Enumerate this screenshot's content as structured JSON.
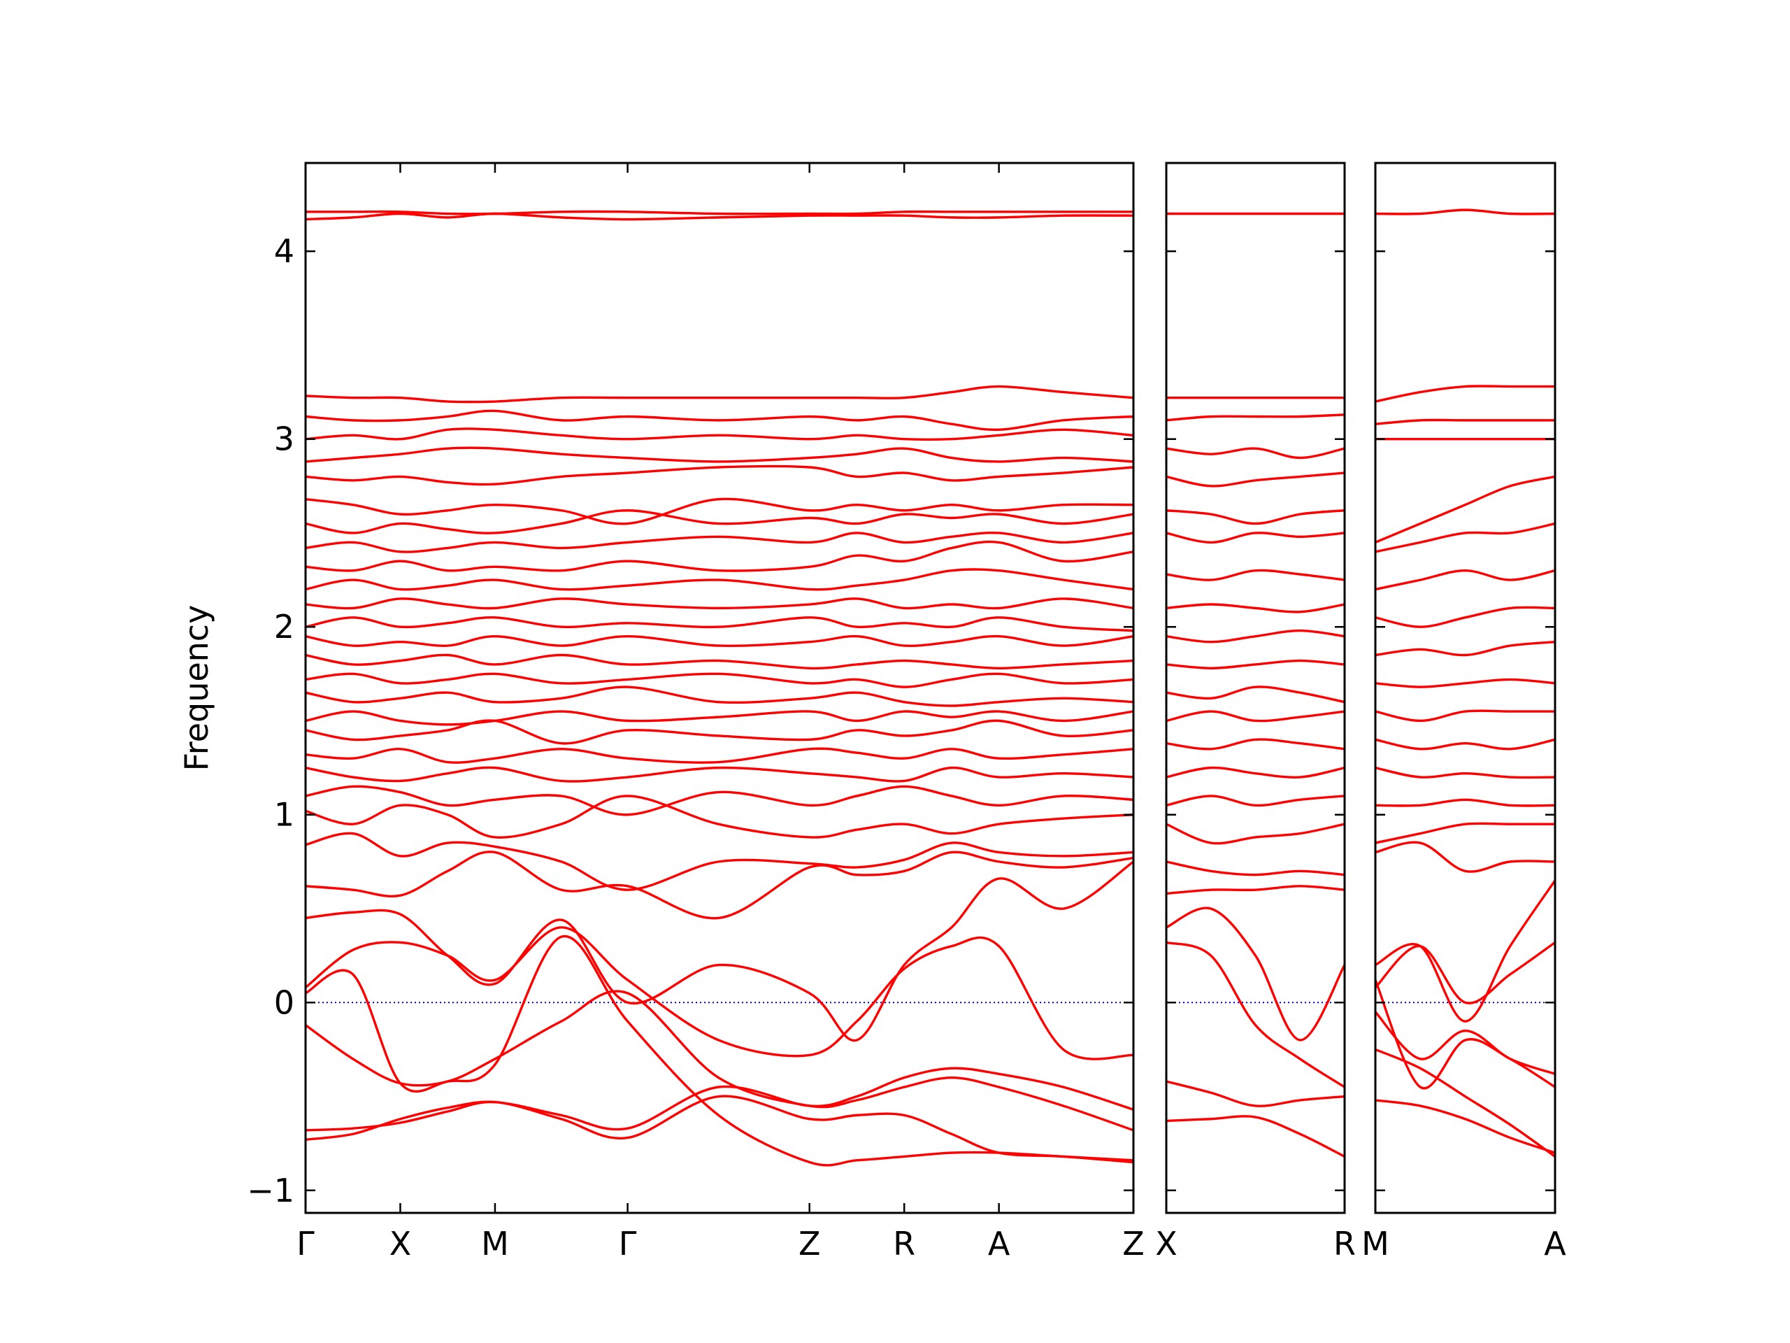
{
  "chart_data": [
    {
      "type": "line",
      "ylabel": "Frequency",
      "color": "#ff0000",
      "hline": 0,
      "hline_color": "#0000cc",
      "xlim": [
        0,
        4.37
      ],
      "ylim": [
        -1.12,
        4.47
      ],
      "ytick_labels": true,
      "xticks": [
        {
          "value": 0,
          "label": "Γ"
        },
        {
          "value": 0.5,
          "label": "X"
        },
        {
          "value": 1.0,
          "label": "M"
        },
        {
          "value": 1.7,
          "label": "Γ"
        },
        {
          "value": 2.66,
          "label": "Z"
        },
        {
          "value": 3.16,
          "label": "R"
        },
        {
          "value": 3.66,
          "label": "A"
        },
        {
          "value": 4.37,
          "label": "Z"
        }
      ],
      "yticks": [
        {
          "value": -1,
          "label": "−1"
        },
        0,
        1,
        2,
        3,
        4
      ],
      "x": [
        0,
        0.25,
        0.5,
        0.75,
        1.0,
        1.35,
        1.7,
        2.18,
        2.66,
        2.91,
        3.16,
        3.41,
        3.66,
        4.0,
        4.37
      ],
      "series": [
        {
          "values": [
            -0.73,
            -0.7,
            -0.62,
            -0.56,
            -0.53,
            -0.6,
            -0.67,
            -0.45,
            -0.55,
            -0.5,
            -0.4,
            -0.35,
            -0.38,
            -0.45,
            -0.57
          ]
        },
        {
          "values": [
            -0.68,
            -0.67,
            -0.64,
            -0.58,
            -0.53,
            -0.62,
            -0.72,
            -0.5,
            -0.62,
            -0.6,
            -0.6,
            -0.7,
            -0.8,
            -0.82,
            -0.85
          ]
        },
        {
          "values": [
            -0.12,
            -0.3,
            -0.43,
            -0.42,
            -0.3,
            -0.1,
            0.05,
            -0.4,
            -0.55,
            -0.52,
            -0.45,
            -0.4,
            -0.45,
            -0.55,
            -0.68
          ]
        },
        {
          "values": [
            0.05,
            0.15,
            -0.43,
            -0.42,
            -0.33,
            0.35,
            -0.1,
            -0.6,
            -0.85,
            -0.84,
            -0.82,
            -0.8,
            -0.8,
            -0.82,
            -0.84
          ]
        },
        {
          "values": [
            0.08,
            0.28,
            0.32,
            0.25,
            0.12,
            0.4,
            0.12,
            -0.2,
            -0.28,
            -0.1,
            0.18,
            0.3,
            0.3,
            -0.25,
            -0.28
          ]
        },
        {
          "values": [
            0.45,
            0.48,
            0.47,
            0.25,
            0.1,
            0.44,
            0.0,
            0.2,
            0.05,
            -0.2,
            0.2,
            0.4,
            0.66,
            0.5,
            0.75
          ]
        },
        {
          "values": [
            0.62,
            0.6,
            0.57,
            0.7,
            0.8,
            0.6,
            0.62,
            0.45,
            0.72,
            0.68,
            0.7,
            0.8,
            0.75,
            0.72,
            0.77
          ]
        },
        {
          "values": [
            0.84,
            0.9,
            0.78,
            0.85,
            0.83,
            0.75,
            0.6,
            0.75,
            0.74,
            0.72,
            0.76,
            0.85,
            0.8,
            0.78,
            0.8
          ]
        },
        {
          "values": [
            1.02,
            0.95,
            1.05,
            1.0,
            0.88,
            0.95,
            1.1,
            0.95,
            0.88,
            0.92,
            0.95,
            0.9,
            0.95,
            0.98,
            1.0
          ]
        },
        {
          "values": [
            1.1,
            1.15,
            1.12,
            1.05,
            1.08,
            1.1,
            1.0,
            1.12,
            1.05,
            1.1,
            1.15,
            1.1,
            1.05,
            1.1,
            1.08
          ]
        },
        {
          "values": [
            1.25,
            1.2,
            1.18,
            1.22,
            1.25,
            1.18,
            1.2,
            1.25,
            1.22,
            1.2,
            1.18,
            1.25,
            1.2,
            1.22,
            1.2
          ]
        },
        {
          "values": [
            1.32,
            1.3,
            1.35,
            1.28,
            1.3,
            1.35,
            1.3,
            1.28,
            1.35,
            1.33,
            1.3,
            1.35,
            1.3,
            1.32,
            1.35
          ]
        },
        {
          "values": [
            1.45,
            1.4,
            1.42,
            1.45,
            1.5,
            1.38,
            1.45,
            1.42,
            1.4,
            1.45,
            1.42,
            1.45,
            1.5,
            1.42,
            1.45
          ]
        },
        {
          "values": [
            1.5,
            1.55,
            1.5,
            1.48,
            1.5,
            1.55,
            1.5,
            1.52,
            1.55,
            1.5,
            1.55,
            1.52,
            1.55,
            1.5,
            1.55
          ]
        },
        {
          "values": [
            1.65,
            1.6,
            1.62,
            1.65,
            1.6,
            1.62,
            1.68,
            1.6,
            1.62,
            1.65,
            1.6,
            1.58,
            1.6,
            1.62,
            1.6
          ]
        },
        {
          "values": [
            1.72,
            1.75,
            1.7,
            1.72,
            1.75,
            1.7,
            1.72,
            1.75,
            1.7,
            1.72,
            1.68,
            1.72,
            1.75,
            1.7,
            1.72
          ]
        },
        {
          "values": [
            1.85,
            1.8,
            1.82,
            1.85,
            1.8,
            1.85,
            1.8,
            1.82,
            1.78,
            1.8,
            1.82,
            1.8,
            1.78,
            1.8,
            1.82
          ]
        },
        {
          "values": [
            1.95,
            1.9,
            1.92,
            1.9,
            1.95,
            1.9,
            1.95,
            1.9,
            1.92,
            1.95,
            1.9,
            1.92,
            1.95,
            1.9,
            1.95
          ]
        },
        {
          "values": [
            2.0,
            2.05,
            2.0,
            2.02,
            2.05,
            2.0,
            2.02,
            2.0,
            2.05,
            2.0,
            2.02,
            2.0,
            2.05,
            2.0,
            1.98
          ]
        },
        {
          "values": [
            2.12,
            2.1,
            2.15,
            2.12,
            2.1,
            2.15,
            2.12,
            2.1,
            2.12,
            2.15,
            2.1,
            2.12,
            2.1,
            2.15,
            2.1
          ]
        },
        {
          "values": [
            2.2,
            2.25,
            2.2,
            2.22,
            2.25,
            2.2,
            2.22,
            2.25,
            2.2,
            2.22,
            2.25,
            2.3,
            2.3,
            2.25,
            2.2
          ]
        },
        {
          "values": [
            2.32,
            2.3,
            2.35,
            2.3,
            2.32,
            2.3,
            2.35,
            2.3,
            2.32,
            2.38,
            2.35,
            2.42,
            2.45,
            2.35,
            2.4
          ]
        },
        {
          "values": [
            2.42,
            2.45,
            2.4,
            2.42,
            2.45,
            2.42,
            2.45,
            2.48,
            2.45,
            2.5,
            2.45,
            2.48,
            2.5,
            2.45,
            2.5
          ]
        },
        {
          "values": [
            2.55,
            2.5,
            2.55,
            2.52,
            2.5,
            2.55,
            2.62,
            2.55,
            2.58,
            2.55,
            2.6,
            2.58,
            2.6,
            2.55,
            2.6
          ]
        },
        {
          "values": [
            2.68,
            2.65,
            2.6,
            2.62,
            2.65,
            2.62,
            2.55,
            2.68,
            2.62,
            2.65,
            2.62,
            2.65,
            2.62,
            2.65,
            2.65
          ]
        },
        {
          "values": [
            2.8,
            2.78,
            2.8,
            2.77,
            2.76,
            2.8,
            2.82,
            2.85,
            2.85,
            2.8,
            2.82,
            2.78,
            2.8,
            2.82,
            2.85
          ]
        },
        {
          "values": [
            2.88,
            2.9,
            2.92,
            2.95,
            2.95,
            2.92,
            2.9,
            2.88,
            2.9,
            2.92,
            2.95,
            2.9,
            2.88,
            2.9,
            2.88
          ]
        },
        {
          "values": [
            3.0,
            3.02,
            3.0,
            3.05,
            3.05,
            3.02,
            3.0,
            3.02,
            3.0,
            3.02,
            3.0,
            3.0,
            3.02,
            3.05,
            3.02
          ]
        },
        {
          "values": [
            3.12,
            3.1,
            3.1,
            3.12,
            3.15,
            3.1,
            3.12,
            3.1,
            3.12,
            3.1,
            3.12,
            3.08,
            3.05,
            3.1,
            3.12
          ]
        },
        {
          "values": [
            3.23,
            3.22,
            3.22,
            3.2,
            3.2,
            3.22,
            3.22,
            3.22,
            3.22,
            3.22,
            3.22,
            3.25,
            3.28,
            3.25,
            3.22
          ]
        },
        {
          "values": [
            4.17,
            4.18,
            4.2,
            4.18,
            4.2,
            4.18,
            4.17,
            4.18,
            4.19,
            4.19,
            4.19,
            4.18,
            4.18,
            4.19,
            4.19
          ]
        },
        {
          "values": [
            4.21,
            4.21,
            4.21,
            4.2,
            4.2,
            4.21,
            4.21,
            4.2,
            4.2,
            4.2,
            4.21,
            4.21,
            4.21,
            4.21,
            4.21
          ]
        }
      ]
    },
    {
      "type": "line",
      "color": "#ff0000",
      "hline": 0,
      "hline_color": "#0000cc",
      "xlim": [
        0,
        0.94
      ],
      "ylim": [
        -1.12,
        4.47
      ],
      "ytick_labels": false,
      "xticks": [
        {
          "value": 0,
          "label": "X"
        },
        {
          "value": 0.94,
          "label": "R"
        }
      ],
      "yticks": [
        -1,
        0,
        1,
        2,
        3,
        4
      ],
      "x": [
        0,
        0.235,
        0.47,
        0.705,
        0.94
      ],
      "series": [
        {
          "values": [
            -0.63,
            -0.62,
            -0.61,
            -0.7,
            -0.82
          ]
        },
        {
          "values": [
            -0.42,
            -0.48,
            -0.55,
            -0.52,
            -0.5
          ]
        },
        {
          "values": [
            0.32,
            0.25,
            -0.12,
            -0.3,
            -0.45
          ]
        },
        {
          "values": [
            0.4,
            0.5,
            0.25,
            -0.2,
            0.2
          ]
        },
        {
          "values": [
            0.58,
            0.6,
            0.6,
            0.62,
            0.6
          ]
        },
        {
          "values": [
            0.75,
            0.7,
            0.68,
            0.7,
            0.68
          ]
        },
        {
          "values": [
            0.95,
            0.85,
            0.88,
            0.9,
            0.95
          ]
        },
        {
          "values": [
            1.05,
            1.1,
            1.05,
            1.08,
            1.1
          ]
        },
        {
          "values": [
            1.2,
            1.25,
            1.22,
            1.2,
            1.25
          ]
        },
        {
          "values": [
            1.38,
            1.35,
            1.4,
            1.38,
            1.35
          ]
        },
        {
          "values": [
            1.5,
            1.55,
            1.5,
            1.52,
            1.55
          ]
        },
        {
          "values": [
            1.65,
            1.62,
            1.68,
            1.65,
            1.6
          ]
        },
        {
          "values": [
            1.8,
            1.78,
            1.8,
            1.82,
            1.8
          ]
        },
        {
          "values": [
            1.95,
            1.92,
            1.95,
            1.98,
            1.95
          ]
        },
        {
          "values": [
            2.1,
            2.12,
            2.1,
            2.08,
            2.12
          ]
        },
        {
          "values": [
            2.28,
            2.25,
            2.3,
            2.28,
            2.25
          ]
        },
        {
          "values": [
            2.5,
            2.45,
            2.5,
            2.48,
            2.5
          ]
        },
        {
          "values": [
            2.62,
            2.6,
            2.55,
            2.6,
            2.62
          ]
        },
        {
          "values": [
            2.8,
            2.75,
            2.78,
            2.8,
            2.82
          ]
        },
        {
          "values": [
            2.95,
            2.92,
            2.95,
            2.9,
            2.95
          ]
        },
        {
          "values": [
            3.1,
            3.12,
            3.12,
            3.12,
            3.13
          ]
        },
        {
          "values": [
            3.22,
            3.22,
            3.22,
            3.22,
            3.22
          ]
        },
        {
          "values": [
            4.2,
            4.2,
            4.2,
            4.2,
            4.2
          ]
        }
      ]
    },
    {
      "type": "line",
      "color": "#ff0000",
      "hline": 0,
      "hline_color": "#0000cc",
      "xlim": [
        0,
        0.95
      ],
      "ylim": [
        -1.12,
        4.47
      ],
      "ytick_labels": false,
      "xticks": [
        {
          "value": 0,
          "label": "M"
        },
        {
          "value": 0.95,
          "label": "A"
        }
      ],
      "yticks": [
        -1,
        0,
        1,
        2,
        3,
        4
      ],
      "x": [
        0,
        0.2375,
        0.475,
        0.7125,
        0.95
      ],
      "series": [
        {
          "values": [
            -0.52,
            -0.55,
            -0.62,
            -0.72,
            -0.8
          ]
        },
        {
          "values": [
            -0.25,
            -0.35,
            -0.5,
            -0.65,
            -0.82
          ]
        },
        {
          "values": [
            0.12,
            -0.45,
            -0.2,
            -0.3,
            -0.45
          ]
        },
        {
          "values": [
            -0.05,
            -0.3,
            -0.15,
            -0.3,
            -0.38
          ]
        },
        {
          "values": [
            0.08,
            0.3,
            0.0,
            0.15,
            0.32
          ]
        },
        {
          "values": [
            0.2,
            0.3,
            -0.1,
            0.3,
            0.65
          ]
        },
        {
          "values": [
            0.8,
            0.85,
            0.7,
            0.75,
            0.75
          ]
        },
        {
          "values": [
            0.85,
            0.9,
            0.95,
            0.95,
            0.95
          ]
        },
        {
          "values": [
            1.05,
            1.05,
            1.08,
            1.05,
            1.05
          ]
        },
        {
          "values": [
            1.25,
            1.2,
            1.22,
            1.2,
            1.2
          ]
        },
        {
          "values": [
            1.4,
            1.35,
            1.38,
            1.35,
            1.4
          ]
        },
        {
          "values": [
            1.55,
            1.5,
            1.55,
            1.55,
            1.55
          ]
        },
        {
          "values": [
            1.7,
            1.68,
            1.7,
            1.72,
            1.7
          ]
        },
        {
          "values": [
            1.85,
            1.88,
            1.85,
            1.9,
            1.92
          ]
        },
        {
          "values": [
            2.05,
            2.0,
            2.05,
            2.1,
            2.1
          ]
        },
        {
          "values": [
            2.2,
            2.25,
            2.3,
            2.25,
            2.3
          ]
        },
        {
          "values": [
            2.4,
            2.45,
            2.5,
            2.5,
            2.55
          ]
        },
        {
          "values": [
            2.45,
            2.55,
            2.65,
            2.75,
            2.8
          ]
        },
        {
          "values": [
            3.0,
            3.0,
            3.0,
            3.0,
            3.0
          ]
        },
        {
          "values": [
            3.08,
            3.1,
            3.1,
            3.1,
            3.1
          ]
        },
        {
          "values": [
            3.2,
            3.25,
            3.28,
            3.28,
            3.28
          ]
        },
        {
          "values": [
            4.2,
            4.2,
            4.22,
            4.2,
            4.2
          ]
        }
      ]
    }
  ]
}
